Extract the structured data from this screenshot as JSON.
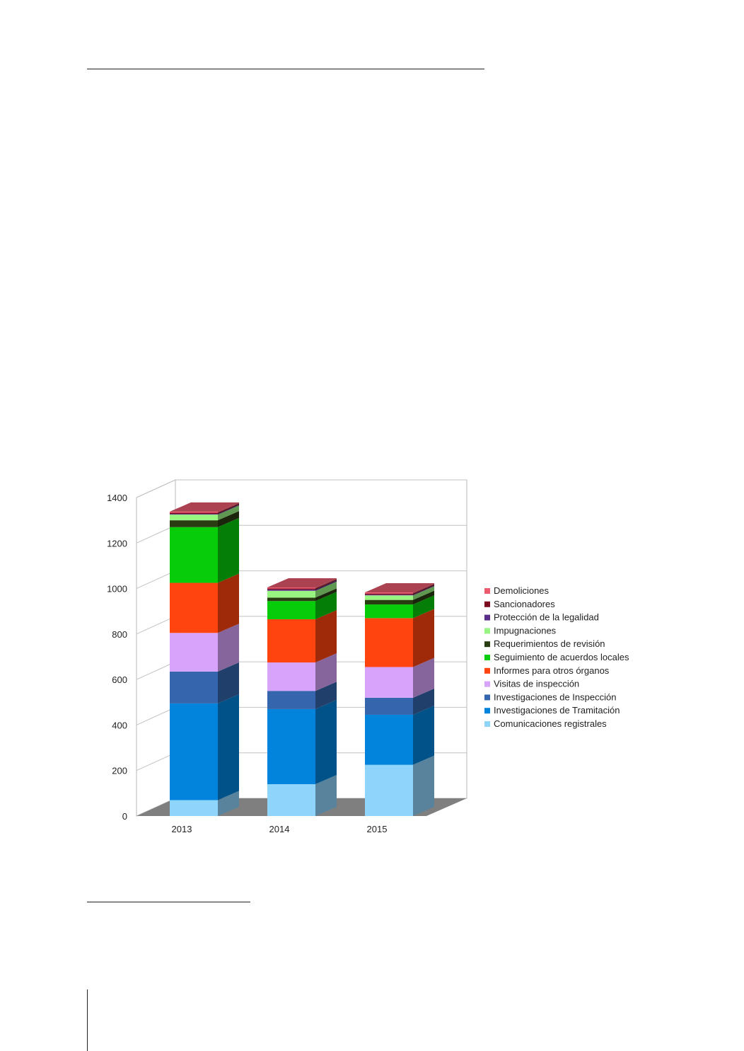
{
  "chart_data": {
    "type": "bar",
    "stacked": true,
    "three_d": true,
    "categories": [
      "2013",
      "2014",
      "2015"
    ],
    "ylim": [
      0,
      1400
    ],
    "yticks": [
      0,
      200,
      400,
      600,
      800,
      1000,
      1200,
      1400
    ],
    "grid": true,
    "legend_position": "right",
    "series": [
      {
        "name": "Comunicaciones registrales",
        "color": "#8fd4fb",
        "values": [
          70,
          140,
          225
        ]
      },
      {
        "name": "Investigaciones de Tramitación",
        "color": "#0284dc",
        "values": [
          425,
          330,
          220
        ]
      },
      {
        "name": "Investigaciones de Inspección",
        "color": "#3566ad",
        "values": [
          140,
          80,
          75
        ]
      },
      {
        "name": "Visitas de inspección",
        "color": "#d8a3fb",
        "values": [
          170,
          125,
          135
        ]
      },
      {
        "name": "Informes para otros órganos",
        "color": "#ff4410",
        "values": [
          220,
          190,
          215
        ]
      },
      {
        "name": "Seguimiento de acuerdos locales",
        "color": "#06cc0a",
        "values": [
          245,
          80,
          60
        ]
      },
      {
        "name": "Requerimientos de revisión",
        "color": "#2a3c12",
        "values": [
          30,
          15,
          20
        ]
      },
      {
        "name": "Impugnaciones",
        "color": "#98f582",
        "values": [
          25,
          30,
          20
        ]
      },
      {
        "name": "Protección de la legalidad",
        "color": "#5a2d8a",
        "values": [
          3,
          5,
          3
        ]
      },
      {
        "name": "Sancionadores",
        "color": "#7a0a1e",
        "values": [
          5,
          5,
          5
        ]
      },
      {
        "name": "Demoliciones",
        "color": "#ee5b70",
        "values": [
          5,
          5,
          5
        ]
      }
    ]
  }
}
